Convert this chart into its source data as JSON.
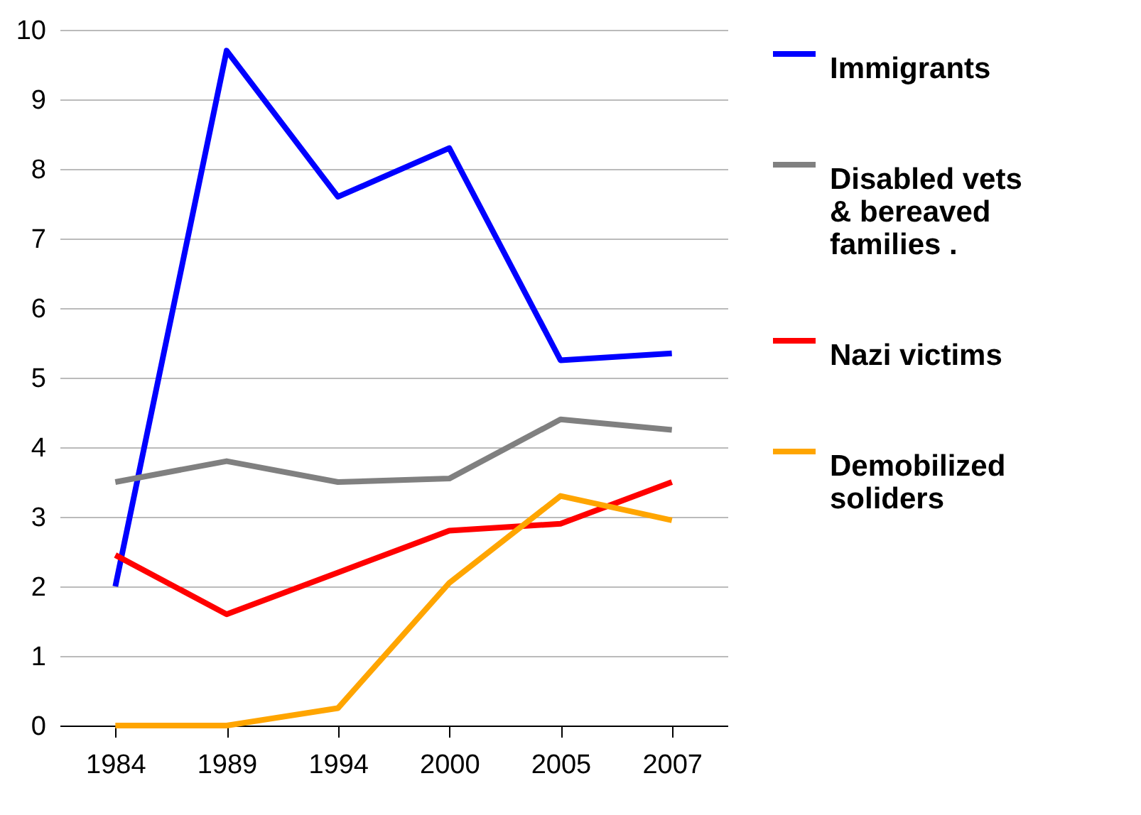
{
  "chart_data": {
    "type": "line",
    "categories": [
      "1984",
      "1989",
      "1994",
      "2000",
      "2005",
      "2007"
    ],
    "series": [
      {
        "name": "Immigrants",
        "color": "#0000ff",
        "values": [
          2.0,
          9.7,
          7.6,
          8.3,
          5.25,
          5.35
        ]
      },
      {
        "name": "Disabled vets & bereaved families .",
        "color": "#808080",
        "values": [
          3.5,
          3.8,
          3.5,
          3.55,
          4.4,
          4.25
        ]
      },
      {
        "name": "Nazi victims",
        "color": "#ff0000",
        "values": [
          2.45,
          1.6,
          2.2,
          2.8,
          2.9,
          3.5
        ]
      },
      {
        "name": "Demobilized soliders",
        "color": "#ffa500",
        "values": [
          0,
          0,
          0.25,
          2.05,
          3.3,
          2.95
        ]
      }
    ],
    "ylim": [
      0,
      10
    ],
    "yticks": [
      0,
      1,
      2,
      3,
      4,
      5,
      6,
      7,
      8,
      9,
      10
    ],
    "grid": "y",
    "legend": "right",
    "marker": "none",
    "line_style": "solid"
  }
}
